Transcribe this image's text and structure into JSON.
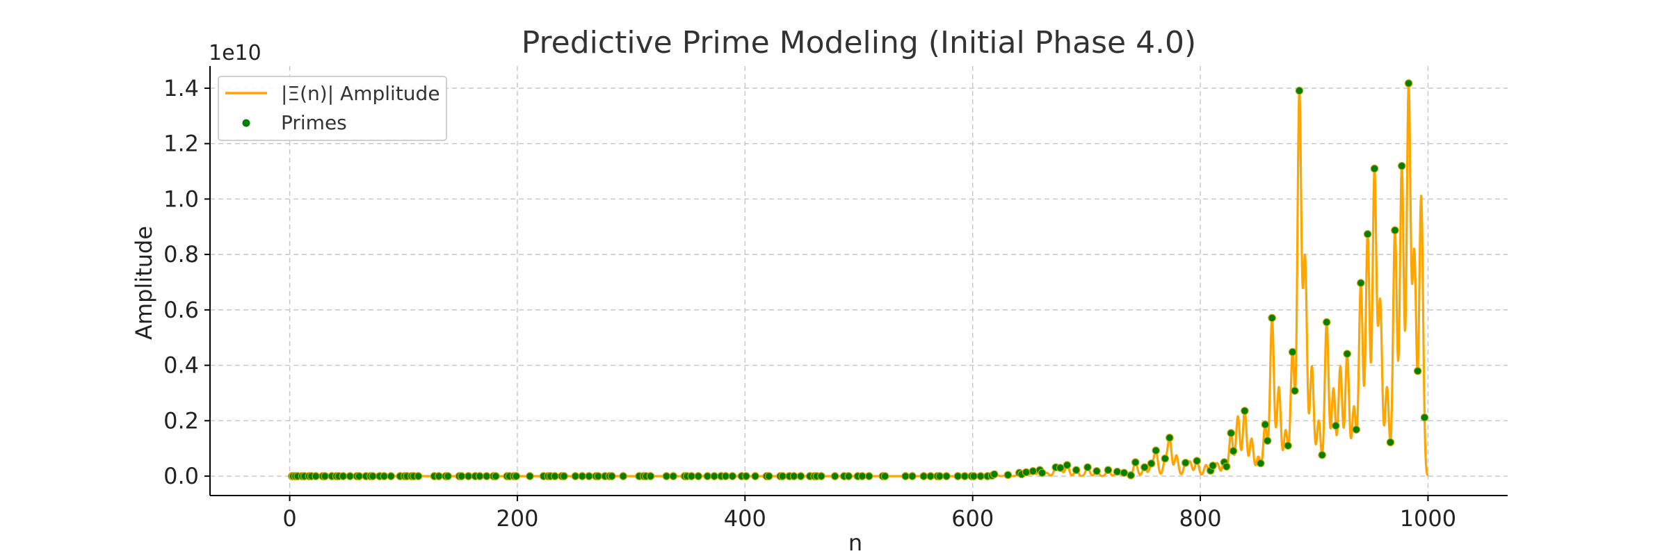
{
  "chart_data": {
    "type": "line",
    "title": "Predictive Prime Modeling (Initial Phase 4.0)",
    "xlabel": "n",
    "ylabel": "Amplitude",
    "y_offset_label": "1e10",
    "xlim": [
      -70,
      1070
    ],
    "ylim": [
      -0.07,
      1.48
    ],
    "x_ticks": [
      0,
      200,
      400,
      600,
      800,
      1000
    ],
    "y_ticks": [
      0.0,
      0.2,
      0.4,
      0.6,
      0.8,
      1.0,
      1.2,
      1.4
    ],
    "x_tick_labels": [
      "0",
      "200",
      "400",
      "600",
      "800",
      "1000"
    ],
    "y_tick_labels": [
      "0.0",
      "0.2",
      "0.4",
      "0.6",
      "0.8",
      "1.0",
      "1.2",
      "1.4"
    ],
    "grid": true,
    "legend_position": "top-left",
    "series": [
      {
        "name": "|Ξ(n)| Amplitude",
        "kind": "line",
        "color": "#ffa500"
      },
      {
        "name": "Primes",
        "kind": "scatter",
        "color": "#008000"
      }
    ],
    "x_range": [
      1,
      1000
    ],
    "peaks": [
      [
        620,
        0.008
      ],
      [
        630,
        0.005
      ],
      [
        641,
        0.012
      ],
      [
        647,
        0.014
      ],
      [
        653,
        0.018
      ],
      [
        659,
        0.022
      ],
      [
        665,
        0.012
      ],
      [
        673,
        0.03
      ],
      [
        677,
        0.028
      ],
      [
        683,
        0.04
      ],
      [
        691,
        0.022
      ],
      [
        701,
        0.032
      ],
      [
        709,
        0.018
      ],
      [
        719,
        0.022
      ],
      [
        727,
        0.016
      ],
      [
        733,
        0.012
      ],
      [
        743,
        0.05
      ],
      [
        751,
        0.032
      ],
      [
        757,
        0.04
      ],
      [
        761,
        0.09
      ],
      [
        769,
        0.055
      ],
      [
        773,
        0.135
      ],
      [
        779,
        0.075
      ],
      [
        787,
        0.045
      ],
      [
        791,
        0.05
      ],
      [
        797,
        0.055
      ],
      [
        805,
        0.04
      ],
      [
        811,
        0.035
      ],
      [
        815,
        0.045
      ],
      [
        821,
        0.05
      ],
      [
        827,
        0.155
      ],
      [
        833,
        0.215
      ],
      [
        839,
        0.235
      ],
      [
        845,
        0.135
      ],
      [
        851,
        0.07
      ],
      [
        857,
        0.185
      ],
      [
        863,
        0.57
      ],
      [
        869,
        0.32
      ],
      [
        875,
        0.165
      ],
      [
        881,
        0.445
      ],
      [
        887,
        1.38
      ],
      [
        892,
        0.78
      ],
      [
        898,
        0.395
      ],
      [
        904,
        0.2
      ],
      [
        911,
        0.555
      ],
      [
        917,
        0.315
      ],
      [
        923,
        0.395
      ],
      [
        929,
        0.44
      ],
      [
        935,
        0.25
      ],
      [
        941,
        0.695
      ],
      [
        947,
        0.87
      ],
      [
        953,
        1.1
      ],
      [
        958,
        0.625
      ],
      [
        964,
        0.32
      ],
      [
        971,
        0.885
      ],
      [
        977,
        1.115
      ],
      [
        983,
        1.405
      ],
      [
        988,
        0.8
      ],
      [
        994,
        1.01
      ]
    ],
    "primes": [
      2,
      3,
      5,
      7,
      11,
      13,
      17,
      19,
      23,
      29,
      31,
      37,
      41,
      43,
      47,
      53,
      59,
      61,
      67,
      71,
      73,
      79,
      83,
      89,
      97,
      101,
      103,
      107,
      109,
      113,
      127,
      131,
      137,
      139,
      149,
      151,
      157,
      163,
      167,
      173,
      179,
      181,
      191,
      193,
      197,
      199,
      211,
      223,
      227,
      229,
      233,
      239,
      241,
      251,
      257,
      263,
      269,
      271,
      277,
      281,
      283,
      293,
      307,
      311,
      313,
      317,
      331,
      337,
      347,
      349,
      353,
      359,
      367,
      373,
      379,
      383,
      389,
      397,
      401,
      409,
      419,
      421,
      431,
      433,
      439,
      443,
      449,
      457,
      461,
      463,
      467,
      479,
      487,
      491,
      499,
      503,
      509,
      521,
      523,
      541,
      547,
      557,
      563,
      569,
      571,
      577,
      587,
      593,
      599,
      601,
      607,
      613,
      617,
      619,
      631,
      641,
      643,
      647,
      653,
      659,
      661,
      673,
      677,
      683,
      691,
      701,
      709,
      719,
      727,
      733,
      739,
      743,
      751,
      757,
      761,
      769,
      773,
      787,
      797,
      809,
      811,
      821,
      823,
      827,
      829,
      839,
      853,
      857,
      859,
      863,
      877,
      881,
      883,
      887,
      907,
      911,
      919,
      929,
      937,
      941,
      947,
      953,
      967,
      971,
      977,
      983,
      991,
      997
    ]
  }
}
